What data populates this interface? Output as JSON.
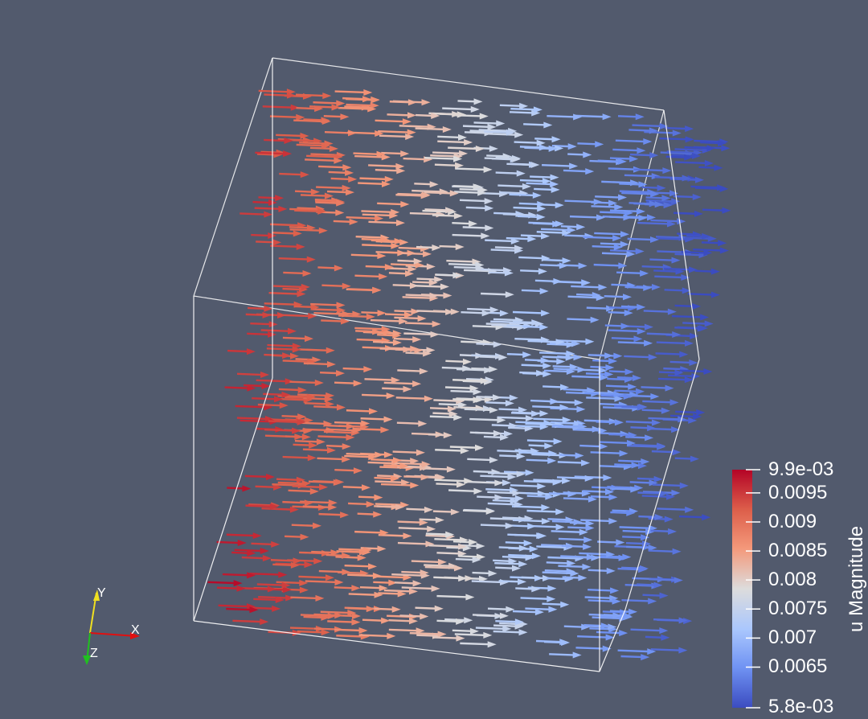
{
  "view": {
    "background": "#525a6d",
    "outline_color": "#ffffff"
  },
  "glyphs": {
    "type": "arrow",
    "direction": "+x",
    "color_by": "u Magnitude",
    "colormap": "Cool to Warm",
    "gradient_along": "x (warm at left, cool at right)"
  },
  "colorbar": {
    "title": "u Magnitude",
    "max_label": "9.9e-03",
    "min_label": "5.8e-03",
    "range": [
      0.0058,
      0.0099
    ],
    "ticks": [
      "0.0095",
      "0.009",
      "0.0085",
      "0.008",
      "0.0075",
      "0.007",
      "0.0065"
    ],
    "colors": [
      "#b40426",
      "#dd5f4b",
      "#f4987a",
      "#dddcdc",
      "#aac7fd",
      "#7093f3",
      "#3b4cc0"
    ]
  },
  "orientation_axes": {
    "x_label": "X",
    "y_label": "Y",
    "z_label": "Z",
    "x_color": "#e01010",
    "y_color": "#f0e020",
    "z_color": "#20c020"
  }
}
